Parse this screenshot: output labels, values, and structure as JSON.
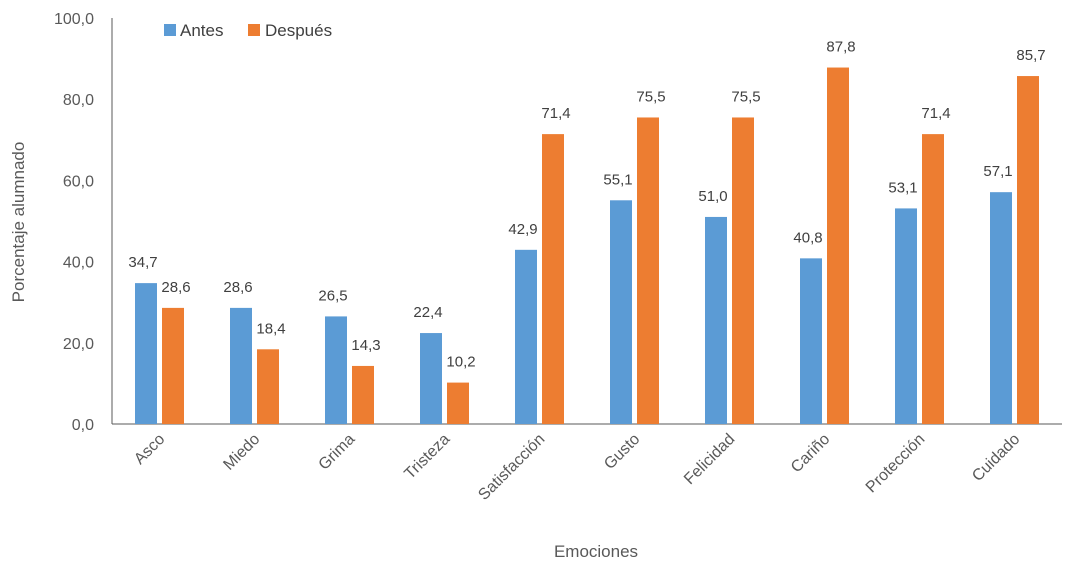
{
  "chart_data": {
    "type": "bar",
    "title": "",
    "xlabel": "Emociones",
    "ylabel": "Porcentaje alumnado",
    "ylim": [
      0,
      100
    ],
    "yticks": [
      "0,0",
      "20,0",
      "40,0",
      "60,0",
      "80,0",
      "100,0"
    ],
    "grid": false,
    "legend_position": "top-left",
    "categories": [
      "Asco",
      "Miedo",
      "Grima",
      "Tristeza",
      "Satisfacción",
      "Gusto",
      "Felicidad",
      "Cariño",
      "Protección",
      "Cuidado"
    ],
    "series": [
      {
        "name": "Antes",
        "color": "#5B9BD5",
        "values": [
          34.7,
          28.6,
          26.5,
          22.4,
          42.9,
          55.1,
          51.0,
          40.8,
          53.1,
          57.1
        ],
        "labels": [
          "34,7",
          "28,6",
          "26,5",
          "22,4",
          "42,9",
          "55,1",
          "51,0",
          "40,8",
          "53,1",
          "57,1"
        ]
      },
      {
        "name": "Después",
        "color": "#ED7D31",
        "values": [
          28.6,
          18.4,
          14.3,
          10.2,
          71.4,
          75.5,
          75.5,
          87.8,
          71.4,
          85.7
        ],
        "labels": [
          "28,6",
          "18,4",
          "14,3",
          "10,2",
          "71,4",
          "75,5",
          "75,5",
          "87,8",
          "71,4",
          "85,7"
        ]
      }
    ]
  }
}
